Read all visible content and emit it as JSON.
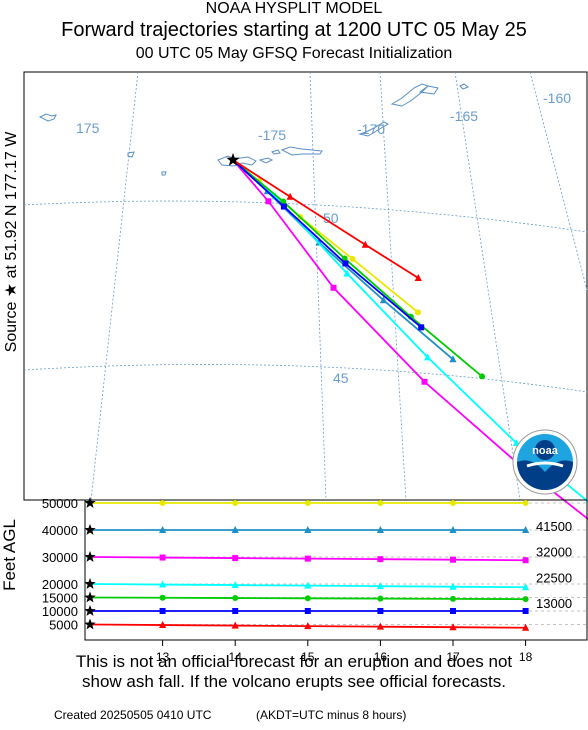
{
  "titles": {
    "line1": "NOAA HYSPLIT MODEL",
    "line2": "Forward trajectories starting at 1200 UTC 05 May 25",
    "line3": "00 UTC 05 May     GFSQ  Forecast Initialization"
  },
  "source_label": "Source ★  at   51.92 N  177.17 W",
  "map": {
    "lon_labels": [
      "175",
      "-175",
      "-170",
      "-165",
      "-160"
    ],
    "lat_labels": [
      "50",
      "45"
    ],
    "land_color": "#5b8fc7",
    "grid_color": "#6a9ccf"
  },
  "logo": {
    "text": "noaa"
  },
  "chart_data": {
    "type": "line",
    "ylabel": "Feet AGL",
    "x": [
      12,
      13,
      14,
      15,
      16,
      17,
      18
    ],
    "x_ticks": [
      13,
      14,
      15,
      16,
      17,
      18
    ],
    "ylim": [
      0,
      52000
    ],
    "y_ticks": [
      5000,
      10000,
      15000,
      20000,
      30000,
      40000,
      50000
    ],
    "right_labels": [
      41500,
      32000,
      22500,
      13000
    ],
    "series": [
      {
        "color": "#e8e800",
        "marker": "circle",
        "heights": [
          50000,
          50000,
          50000,
          50000,
          50000,
          50000,
          50000
        ],
        "track": [
          [
            177.17,
            51.92
          ],
          [
            177.5,
            51.5
          ],
          [
            178.0,
            50.8
          ],
          [
            178.6,
            50.0
          ],
          [
            179.3,
            49.0
          ]
        ]
      },
      {
        "color": "#1e90c8",
        "marker": "triangle",
        "heights": [
          40000,
          40000,
          40000,
          40000,
          40000,
          40000,
          40000
        ],
        "track": [
          [
            177.17,
            51.92
          ],
          [
            177.6,
            51.3
          ],
          [
            178.2,
            50.3
          ],
          [
            178.9,
            49.2
          ],
          [
            179.6,
            48.1
          ]
        ]
      },
      {
        "color": "#ff00ff",
        "marker": "square",
        "heights": [
          30000,
          29800,
          29600,
          29400,
          29200,
          29000,
          28800
        ],
        "track": [
          [
            177.17,
            51.92
          ],
          [
            177.6,
            51.1
          ],
          [
            178.3,
            49.4
          ],
          [
            179.2,
            47.6
          ],
          [
            180.1,
            46.0
          ],
          [
            181.0,
            44.5
          ],
          [
            181.9,
            43.3
          ]
        ]
      },
      {
        "color": "#00ffff",
        "marker": "triangle",
        "heights": [
          20000,
          19800,
          19600,
          19400,
          19200,
          19000,
          18800
        ],
        "track": [
          [
            177.17,
            51.92
          ],
          [
            177.7,
            51.2
          ],
          [
            178.5,
            49.7
          ],
          [
            179.3,
            48.1
          ],
          [
            180.1,
            46.5
          ],
          [
            180.8,
            45.3
          ]
        ]
      },
      {
        "color": "#00cc00",
        "marker": "circle",
        "heights": [
          15000,
          14900,
          14800,
          14700,
          14600,
          14500,
          14400
        ],
        "track": [
          [
            177.17,
            51.92
          ],
          [
            177.8,
            51.1
          ],
          [
            178.5,
            50.0
          ],
          [
            179.2,
            48.9
          ],
          [
            179.9,
            47.8
          ]
        ]
      },
      {
        "color": "#0000ff",
        "marker": "square",
        "heights": [
          10000,
          10000,
          10000,
          10000,
          10000,
          10000,
          10000
        ],
        "track": [
          [
            177.17,
            51.92
          ],
          [
            177.8,
            51.0
          ],
          [
            178.5,
            49.9
          ],
          [
            179.3,
            48.7
          ]
        ]
      },
      {
        "color": "#ff0000",
        "marker": "triangle",
        "heights": [
          5000,
          4800,
          4600,
          4400,
          4200,
          4000,
          3800
        ],
        "track": [
          [
            177.17,
            51.92
          ],
          [
            177.9,
            51.2
          ],
          [
            178.8,
            50.3
          ],
          [
            179.4,
            49.7
          ]
        ]
      }
    ]
  },
  "footer": {
    "disclaimer_line1": "This is not an official forecast for an eruption and does not",
    "disclaimer_line2": "show ash fall. If the volcano erupts see official forecasts.",
    "created": "Created 20250505 0410 UTC",
    "akdt": "(AKDT=UTC minus 8 hours)"
  }
}
